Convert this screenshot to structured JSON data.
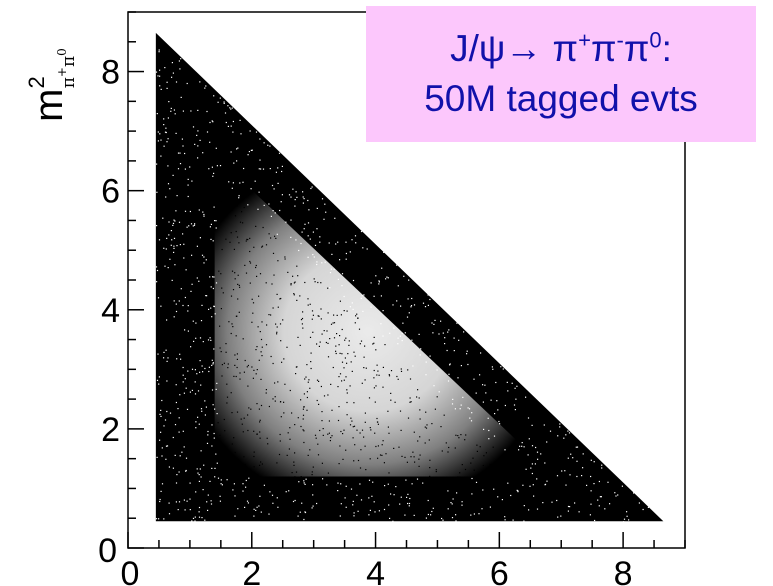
{
  "chart_data": {
    "type": "scatter",
    "title": "",
    "xlabel": "",
    "ylabel": {
      "main": "m",
      "sup": "2",
      "sub_base1": "π",
      "sub_sup1": "+",
      "sub_base2": "π",
      "sub_sup2": "0"
    },
    "xlim": [
      0,
      9
    ],
    "ylim": [
      0,
      9
    ],
    "xticks": [
      {
        "value": 0,
        "label": "0"
      },
      {
        "value": 2,
        "label": "2"
      },
      {
        "value": 4,
        "label": "4"
      },
      {
        "value": 6,
        "label": "6"
      },
      {
        "value": 8,
        "label": "8"
      }
    ],
    "yticks": [
      {
        "value": 0,
        "label": "0"
      },
      {
        "value": 2,
        "label": "2"
      },
      {
        "value": 4,
        "label": "4"
      },
      {
        "value": 6,
        "label": "6"
      },
      {
        "value": 8,
        "label": "8"
      }
    ],
    "dalitz_region": {
      "vertices": [
        [
          0.45,
          8.65
        ],
        [
          0.45,
          0.45
        ],
        [
          8.65,
          0.45
        ]
      ]
    },
    "point_color": "#000000",
    "annotation": {
      "line1_prefix": "J/ψ→ π",
      "sup1": "+",
      "mid1": "π",
      "sup2": "-",
      "mid2": "π",
      "sup3": "0",
      "suffix": ":",
      "line2": "50M tagged evts",
      "text_color": "#1111aa",
      "bg_color": "#fcc7fc"
    }
  }
}
